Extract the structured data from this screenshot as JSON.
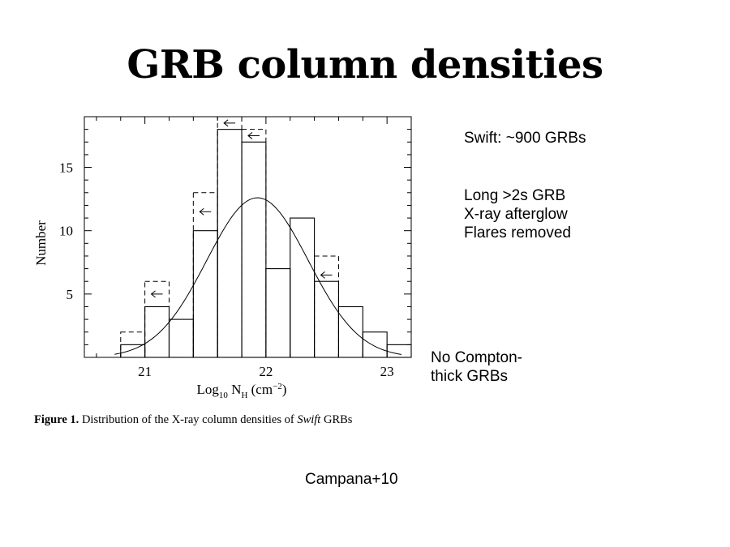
{
  "slide": {
    "title": "GRB column densities",
    "caption_label": "Figure 1.",
    "caption_text_before": "Distribution of the X-ray column densities of",
    "caption_italic": "Swift",
    "caption_text_after": "GRBs",
    "notes": {
      "sample": "Swift: ~900 GRBs",
      "criteria": [
        "Long >2s GRB",
        "X-ray afterglow",
        "Flares removed"
      ],
      "compton": [
        "No Compton-",
        "thick GRBs"
      ]
    },
    "citation": "Campana+10"
  },
  "chart_data": {
    "type": "bar",
    "subtype": "histogram",
    "xlabel_main": "Log",
    "xlabel_sub1": "10",
    "xlabel_mid": " N",
    "xlabel_sub2": "H",
    "xlabel_units": " (cm",
    "xlabel_exp": "−2",
    "xlabel_close": ")",
    "ylabel": "Number",
    "xlim": [
      20.5,
      23.2
    ],
    "ylim": [
      0,
      19
    ],
    "x_ticks": [
      21,
      22,
      23
    ],
    "y_ticks": [
      5,
      10,
      15
    ],
    "bin_width": 0.2,
    "series": [
      {
        "style": "solid",
        "bin_starts": [
          20.8,
          21.0,
          21.2,
          21.4,
          21.6,
          21.8,
          22.0,
          22.2,
          22.4,
          22.6,
          22.8,
          23.0
        ],
        "values": [
          1,
          4,
          3,
          10,
          18,
          17,
          7,
          11,
          6,
          4,
          2,
          1
        ]
      },
      {
        "style": "dashed",
        "bins": [
          {
            "start": 20.8,
            "value": 2
          },
          {
            "start": 21.0,
            "value": 6
          },
          {
            "start": 21.4,
            "value": 13
          },
          {
            "start": 21.6,
            "value": 19
          },
          {
            "start": 21.8,
            "value": 18
          },
          {
            "start": 22.4,
            "value": 8
          }
        ]
      }
    ],
    "upper_limit_arrows": [
      {
        "x": 21.1,
        "y": 5
      },
      {
        "x": 21.5,
        "y": 11.5
      },
      {
        "x": 21.7,
        "y": 18.5
      },
      {
        "x": 21.9,
        "y": 17.5
      },
      {
        "x": 22.5,
        "y": 6.5
      }
    ],
    "gaussian_fit": {
      "amplitude": 12.6,
      "mean": 21.93,
      "sigma": 0.42
    }
  }
}
